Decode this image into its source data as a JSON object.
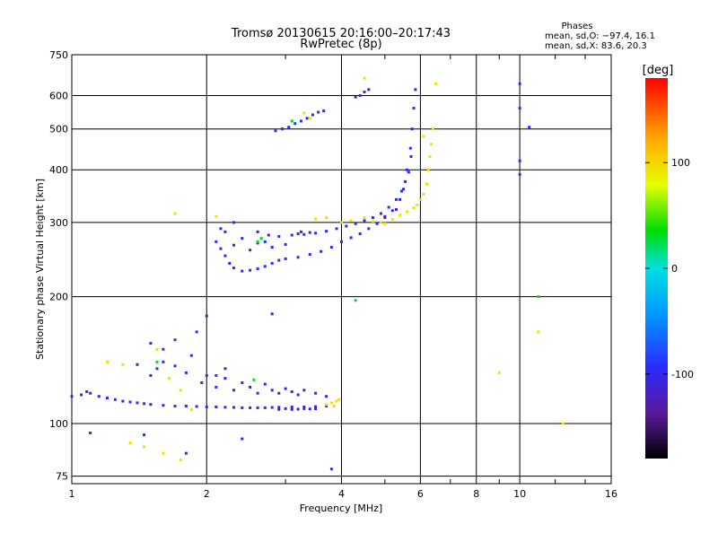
{
  "chart_data": {
    "type": "scatter",
    "title": "Tromsø 20130615 20:16:00–20:17:43",
    "subtitle": "RwPretec (8p)",
    "xlabel": "Frequency [MHz]",
    "ylabel": "Stationary phase Virtual Height [km]",
    "xscale": "log",
    "yscale": "log",
    "xlim": [
      1,
      16
    ],
    "ylim": [
      72,
      750
    ],
    "xticks": [
      1,
      2,
      4,
      6,
      8,
      10,
      16
    ],
    "yticks": [
      75,
      100,
      200,
      300,
      400,
      500,
      600,
      750
    ],
    "grid": true,
    "legend": {
      "title": "Phases",
      "lines": [
        "mean, sd,O: −97.4, 16.1",
        "mean, sd,X:  83.6, 20.3"
      ]
    },
    "colorbar": {
      "label": "[deg]",
      "range": [
        -180,
        180
      ],
      "ticks": [
        100,
        0,
        -100
      ]
    },
    "series": [
      {
        "color_value": -95,
        "points": [
          [
            1.0,
            116
          ],
          [
            1.05,
            117
          ],
          [
            1.08,
            119
          ],
          [
            1.1,
            118
          ],
          [
            1.15,
            116
          ],
          [
            1.2,
            115
          ],
          [
            1.25,
            114
          ],
          [
            1.3,
            113
          ],
          [
            1.35,
            112.5
          ],
          [
            1.4,
            112
          ],
          [
            1.45,
            111.5
          ],
          [
            1.5,
            111
          ],
          [
            1.6,
            110.5
          ],
          [
            1.7,
            110
          ],
          [
            1.8,
            110
          ],
          [
            1.9,
            109.8
          ],
          [
            2.0,
            109.5
          ],
          [
            2.1,
            109.5
          ],
          [
            2.2,
            109.3
          ],
          [
            2.3,
            109.2
          ],
          [
            2.4,
            109
          ],
          [
            2.5,
            109
          ],
          [
            2.6,
            109
          ],
          [
            2.7,
            109
          ],
          [
            2.8,
            109.2
          ],
          [
            2.9,
            109.3
          ],
          [
            3.1,
            109.5
          ],
          [
            3.3,
            109.5
          ],
          [
            3.5,
            109.7
          ],
          [
            3.7,
            110
          ],
          [
            1.5,
            130
          ],
          [
            1.55,
            135
          ],
          [
            1.6,
            140
          ],
          [
            1.7,
            137
          ],
          [
            1.8,
            132
          ],
          [
            1.85,
            145
          ],
          [
            1.95,
            125
          ],
          [
            2.0,
            130
          ],
          [
            2.1,
            122
          ],
          [
            2.2,
            128
          ],
          [
            2.3,
            120
          ],
          [
            2.4,
            125
          ],
          [
            2.5,
            122
          ],
          [
            2.6,
            118
          ],
          [
            2.7,
            124
          ],
          [
            2.8,
            120
          ],
          [
            2.9,
            118
          ],
          [
            3.0,
            121
          ],
          [
            3.1,
            119
          ],
          [
            3.2,
            117
          ],
          [
            3.3,
            120
          ],
          [
            3.5,
            118
          ],
          [
            3.7,
            116
          ],
          [
            1.6,
            150
          ],
          [
            1.7,
            158
          ],
          [
            1.9,
            165
          ],
          [
            2.1,
            130
          ],
          [
            2.2,
            135
          ],
          [
            1.5,
            155
          ],
          [
            1.4,
            138
          ],
          [
            2.1,
            270
          ],
          [
            2.15,
            260
          ],
          [
            2.2,
            250
          ],
          [
            2.25,
            240
          ],
          [
            2.3,
            234
          ],
          [
            2.4,
            230
          ],
          [
            2.5,
            231
          ],
          [
            2.6,
            233
          ],
          [
            2.7,
            236
          ],
          [
            2.8,
            240
          ],
          [
            2.9,
            244
          ],
          [
            3.0,
            246
          ],
          [
            3.2,
            248
          ],
          [
            3.4,
            252
          ],
          [
            3.6,
            256
          ],
          [
            3.8,
            262
          ],
          [
            4.0,
            270
          ],
          [
            4.2,
            276
          ],
          [
            4.4,
            282
          ],
          [
            4.6,
            290
          ],
          [
            4.8,
            298
          ],
          [
            5.0,
            308
          ],
          [
            5.2,
            320
          ],
          [
            5.4,
            340
          ],
          [
            5.5,
            360
          ],
          [
            5.6,
            400
          ],
          [
            5.7,
            450
          ],
          [
            5.75,
            500
          ],
          [
            5.8,
            560
          ],
          [
            5.85,
            620
          ],
          [
            2.3,
            265
          ],
          [
            2.5,
            258
          ],
          [
            2.7,
            270
          ],
          [
            2.9,
            278
          ],
          [
            3.1,
            280
          ],
          [
            3.3,
            281
          ],
          [
            3.5,
            283
          ],
          [
            3.7,
            286
          ],
          [
            3.9,
            290
          ],
          [
            4.1,
            294
          ],
          [
            4.3,
            298
          ],
          [
            4.5,
            303
          ],
          [
            4.7,
            308
          ],
          [
            4.9,
            315
          ],
          [
            5.1,
            326
          ],
          [
            5.3,
            340
          ],
          [
            5.45,
            356
          ],
          [
            5.55,
            375
          ],
          [
            5.65,
            395
          ],
          [
            5.72,
            430
          ],
          [
            2.15,
            290
          ],
          [
            2.2,
            285
          ],
          [
            2.3,
            300
          ],
          [
            2.4,
            275
          ],
          [
            2.6,
            268
          ],
          [
            2.8,
            262
          ],
          [
            3.0,
            266
          ],
          [
            2.85,
            495
          ],
          [
            2.95,
            500
          ],
          [
            3.05,
            505
          ],
          [
            3.15,
            515
          ],
          [
            3.25,
            522
          ],
          [
            3.35,
            530
          ],
          [
            3.45,
            540
          ],
          [
            3.55,
            548
          ],
          [
            3.65,
            552
          ],
          [
            4.3,
            595
          ],
          [
            4.4,
            600
          ],
          [
            4.5,
            612
          ],
          [
            4.6,
            620
          ],
          [
            10.0,
            640
          ],
          [
            10.0,
            560
          ],
          [
            10.0,
            420
          ],
          [
            10.0,
            390
          ],
          [
            10.5,
            505
          ],
          [
            1.8,
            85
          ],
          [
            2.4,
            92
          ],
          [
            1.45,
            94
          ],
          [
            3.8,
            78
          ],
          [
            1.1,
            95
          ]
        ]
      },
      {
        "color_value": 95,
        "points": [
          [
            3.7,
            111
          ],
          [
            3.8,
            112
          ],
          [
            3.9,
            113
          ],
          [
            3.85,
            110
          ],
          [
            3.95,
            114
          ],
          [
            4.0,
            300
          ],
          [
            4.2,
            303
          ],
          [
            4.5,
            308
          ],
          [
            4.7,
            302
          ],
          [
            4.9,
            300
          ],
          [
            5.0,
            298
          ],
          [
            5.2,
            305
          ],
          [
            5.4,
            312
          ],
          [
            5.6,
            318
          ],
          [
            5.8,
            325
          ],
          [
            5.9,
            330
          ],
          [
            6.0,
            340
          ],
          [
            6.1,
            350
          ],
          [
            6.2,
            370
          ],
          [
            6.25,
            400
          ],
          [
            6.3,
            430
          ],
          [
            6.35,
            460
          ],
          [
            6.4,
            500
          ],
          [
            6.5,
            640
          ],
          [
            3.5,
            306
          ],
          [
            3.7,
            308
          ],
          [
            3.3,
            545
          ],
          [
            3.4,
            530
          ],
          [
            4.5,
            660
          ],
          [
            6.1,
            480
          ],
          [
            1.2,
            140
          ],
          [
            1.3,
            138
          ],
          [
            1.55,
            150
          ],
          [
            1.65,
            128
          ],
          [
            1.75,
            120
          ],
          [
            1.85,
            108
          ],
          [
            1.35,
            90
          ],
          [
            1.45,
            88
          ],
          [
            1.6,
            85
          ],
          [
            1.75,
            82
          ],
          [
            9.0,
            132
          ],
          [
            11.0,
            165
          ],
          [
            12.5,
            100
          ],
          [
            2.1,
            310
          ],
          [
            1.7,
            315
          ]
        ]
      },
      {
        "color_value": -125,
        "points": [
          [
            2.9,
            108
          ],
          [
            3.0,
            108.5
          ],
          [
            3.1,
            108
          ],
          [
            3.2,
            108.2
          ],
          [
            3.3,
            108.5
          ],
          [
            3.4,
            108.3
          ],
          [
            3.5,
            108.4
          ],
          [
            2.75,
            280
          ],
          [
            3.25,
            285
          ],
          [
            2.6,
            285
          ],
          [
            5.0,
            310
          ],
          [
            5.3,
            322
          ],
          [
            3.2,
            282
          ],
          [
            3.4,
            284
          ],
          [
            2.0,
            180
          ],
          [
            2.8,
            182
          ]
        ]
      },
      {
        "color_value": 30,
        "points": [
          [
            2.6,
            270
          ],
          [
            2.65,
            275
          ],
          [
            4.3,
            196
          ],
          [
            11.0,
            200
          ],
          [
            1.55,
            140
          ],
          [
            3.1,
            522
          ],
          [
            2.55,
            127
          ]
        ]
      }
    ]
  }
}
